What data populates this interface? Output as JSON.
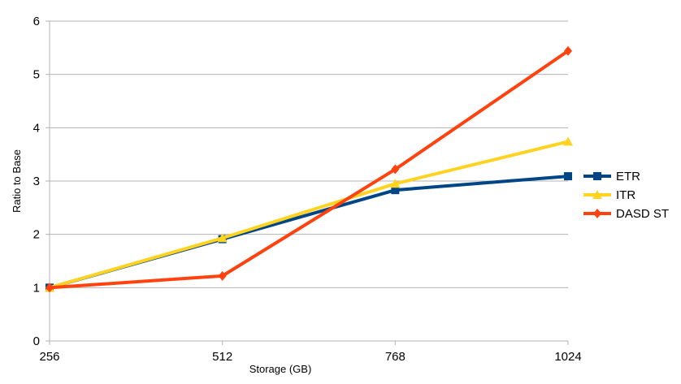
{
  "chart_data": {
    "type": "line",
    "title": "",
    "xlabel": "Storage (GB)",
    "ylabel": "Ratio to Base",
    "categories": [
      "256",
      "512",
      "768",
      "1024"
    ],
    "ylim": [
      0,
      6
    ],
    "yticks": [
      "0",
      "1",
      "2",
      "3",
      "4",
      "5",
      "6"
    ],
    "grid": "horizontal",
    "legend_position": "right",
    "series": [
      {
        "name": "ETR",
        "values": [
          1.0,
          1.91,
          2.83,
          3.09
        ],
        "color": "#004586",
        "marker": "square"
      },
      {
        "name": "ITR",
        "values": [
          1.0,
          1.93,
          2.95,
          3.74
        ],
        "color": "#FFD320",
        "marker": "triangle"
      },
      {
        "name": "DASD ST",
        "values": [
          1.0,
          1.22,
          3.22,
          5.44
        ],
        "color": "#FF420E",
        "marker": "diamond"
      }
    ]
  }
}
